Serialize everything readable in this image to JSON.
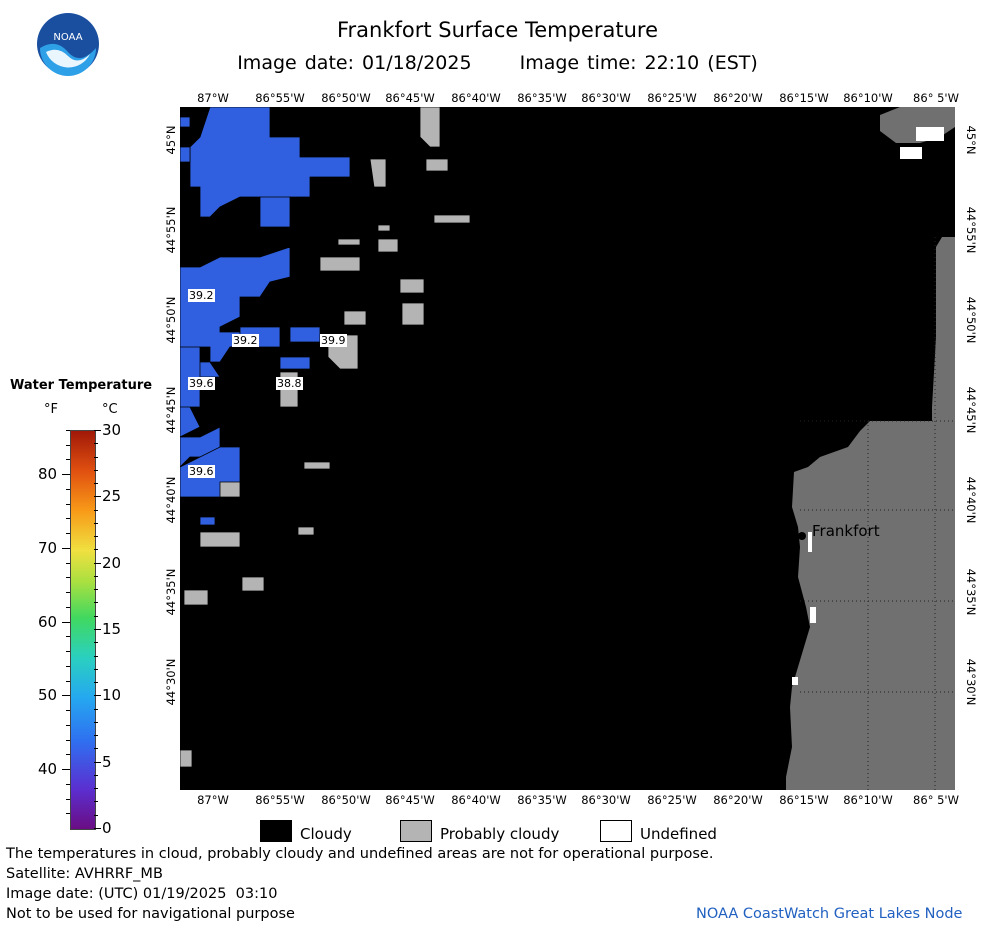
{
  "header": {
    "title": "Frankfort Surface Temperature",
    "image_date": "Image date: 01/18/2025",
    "image_time": "Image time: 22:10 (EST)"
  },
  "logo": {
    "text": "NOAA",
    "icon": "noaa-logo"
  },
  "map": {
    "lon_labels": [
      "87°W",
      "86°55'W",
      "86°50'W",
      "86°45'W",
      "86°40'W",
      "86°35'W",
      "86°30'W",
      "86°25'W",
      "86°20'W",
      "86°15'W",
      "86°10'W",
      "86° 5'W"
    ],
    "lat_labels": [
      "45°N",
      "44°55'N",
      "44°50'N",
      "44°45'N",
      "44°40'N",
      "44°35'N",
      "44°30'N"
    ],
    "place_label": "Frankfort",
    "temperature_labels": [
      "39.2",
      "39.2",
      "39.9",
      "39.6",
      "38.8",
      "39.6"
    ],
    "colors": {
      "cloudy": "#000000",
      "probably_cloudy": "#b4b4b4",
      "land": "#707070",
      "water": "#3060e0",
      "undefined": "#ffffff"
    }
  },
  "colorbar": {
    "title": "Water Temperature",
    "unit_f": "°F",
    "unit_c": "°C",
    "fahrenheit": [
      "80",
      "70",
      "60",
      "50",
      "40"
    ],
    "celsius": [
      "30",
      "25",
      "20",
      "15",
      "10",
      "5",
      "0"
    ]
  },
  "key": {
    "cloudy": "Cloudy",
    "probably_cloudy": "Probably cloudy",
    "undefined": "Undefined"
  },
  "footer": {
    "note": "The temperatures in cloud, probably cloudy and undefined areas are not for operational purpose.",
    "satellite": "Satellite: AVHRRF_MB",
    "utc_date": "Image date: (UTC) 01/19/2025  03:10",
    "nav_note": "Not to be used for navigational purpose",
    "credit": "NOAA CoastWatch Great Lakes Node"
  }
}
